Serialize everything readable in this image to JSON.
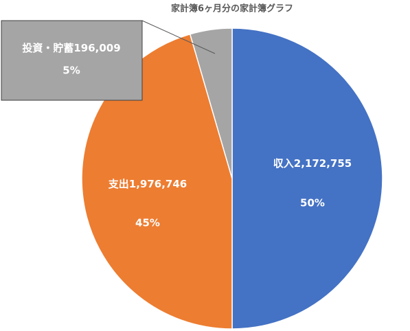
{
  "chart_data": {
    "type": "pie",
    "title": "家計簿6ヶ月分の家計簿グラフ",
    "categories": [
      "収入",
      "支出",
      "投資・貯蓄"
    ],
    "values": [
      2172755,
      1976746,
      196009
    ],
    "value_labels": [
      "2,172,755",
      "1,976,746",
      "196,009"
    ],
    "percent_labels": [
      "50%",
      "45%",
      "5%"
    ],
    "colors": [
      "#4472c4",
      "#ed7d31",
      "#a5a5a5"
    ]
  }
}
